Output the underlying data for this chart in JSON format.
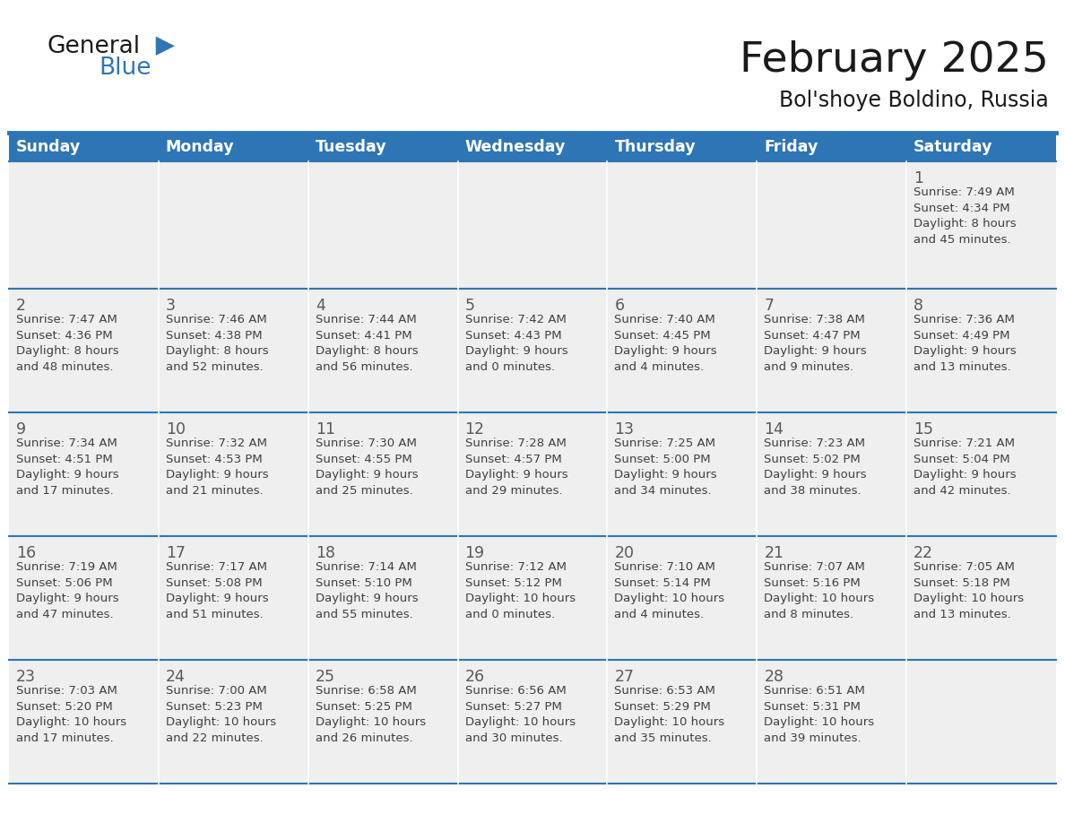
{
  "title": "February 2025",
  "subtitle": "Bol'shoye Boldino, Russia",
  "header_bg": "#2E75B6",
  "header_text_color": "#FFFFFF",
  "cell_bg": "#EFEFEF",
  "day_names": [
    "Sunday",
    "Monday",
    "Tuesday",
    "Wednesday",
    "Thursday",
    "Friday",
    "Saturday"
  ],
  "title_color": "#1a1a1a",
  "subtitle_color": "#1a1a1a",
  "line_color": "#2E75B6",
  "day_number_color": "#595959",
  "info_color": "#404040",
  "logo_general_color": "#1a1a1a",
  "logo_blue_color": "#2E75B6",
  "days": [
    {
      "day": 1,
      "col": 6,
      "row": 0,
      "sunrise": "7:49 AM",
      "sunset": "4:34 PM",
      "daylight": "8 hours and 45 minutes."
    },
    {
      "day": 2,
      "col": 0,
      "row": 1,
      "sunrise": "7:47 AM",
      "sunset": "4:36 PM",
      "daylight": "8 hours and 48 minutes."
    },
    {
      "day": 3,
      "col": 1,
      "row": 1,
      "sunrise": "7:46 AM",
      "sunset": "4:38 PM",
      "daylight": "8 hours and 52 minutes."
    },
    {
      "day": 4,
      "col": 2,
      "row": 1,
      "sunrise": "7:44 AM",
      "sunset": "4:41 PM",
      "daylight": "8 hours and 56 minutes."
    },
    {
      "day": 5,
      "col": 3,
      "row": 1,
      "sunrise": "7:42 AM",
      "sunset": "4:43 PM",
      "daylight": "9 hours and 0 minutes."
    },
    {
      "day": 6,
      "col": 4,
      "row": 1,
      "sunrise": "7:40 AM",
      "sunset": "4:45 PM",
      "daylight": "9 hours and 4 minutes."
    },
    {
      "day": 7,
      "col": 5,
      "row": 1,
      "sunrise": "7:38 AM",
      "sunset": "4:47 PM",
      "daylight": "9 hours and 9 minutes."
    },
    {
      "day": 8,
      "col": 6,
      "row": 1,
      "sunrise": "7:36 AM",
      "sunset": "4:49 PM",
      "daylight": "9 hours and 13 minutes."
    },
    {
      "day": 9,
      "col": 0,
      "row": 2,
      "sunrise": "7:34 AM",
      "sunset": "4:51 PM",
      "daylight": "9 hours and 17 minutes."
    },
    {
      "day": 10,
      "col": 1,
      "row": 2,
      "sunrise": "7:32 AM",
      "sunset": "4:53 PM",
      "daylight": "9 hours and 21 minutes."
    },
    {
      "day": 11,
      "col": 2,
      "row": 2,
      "sunrise": "7:30 AM",
      "sunset": "4:55 PM",
      "daylight": "9 hours and 25 minutes."
    },
    {
      "day": 12,
      "col": 3,
      "row": 2,
      "sunrise": "7:28 AM",
      "sunset": "4:57 PM",
      "daylight": "9 hours and 29 minutes."
    },
    {
      "day": 13,
      "col": 4,
      "row": 2,
      "sunrise": "7:25 AM",
      "sunset": "5:00 PM",
      "daylight": "9 hours and 34 minutes."
    },
    {
      "day": 14,
      "col": 5,
      "row": 2,
      "sunrise": "7:23 AM",
      "sunset": "5:02 PM",
      "daylight": "9 hours and 38 minutes."
    },
    {
      "day": 15,
      "col": 6,
      "row": 2,
      "sunrise": "7:21 AM",
      "sunset": "5:04 PM",
      "daylight": "9 hours and 42 minutes."
    },
    {
      "day": 16,
      "col": 0,
      "row": 3,
      "sunrise": "7:19 AM",
      "sunset": "5:06 PM",
      "daylight": "9 hours and 47 minutes."
    },
    {
      "day": 17,
      "col": 1,
      "row": 3,
      "sunrise": "7:17 AM",
      "sunset": "5:08 PM",
      "daylight": "9 hours and 51 minutes."
    },
    {
      "day": 18,
      "col": 2,
      "row": 3,
      "sunrise": "7:14 AM",
      "sunset": "5:10 PM",
      "daylight": "9 hours and 55 minutes."
    },
    {
      "day": 19,
      "col": 3,
      "row": 3,
      "sunrise": "7:12 AM",
      "sunset": "5:12 PM",
      "daylight": "10 hours and 0 minutes."
    },
    {
      "day": 20,
      "col": 4,
      "row": 3,
      "sunrise": "7:10 AM",
      "sunset": "5:14 PM",
      "daylight": "10 hours and 4 minutes."
    },
    {
      "day": 21,
      "col": 5,
      "row": 3,
      "sunrise": "7:07 AM",
      "sunset": "5:16 PM",
      "daylight": "10 hours and 8 minutes."
    },
    {
      "day": 22,
      "col": 6,
      "row": 3,
      "sunrise": "7:05 AM",
      "sunset": "5:18 PM",
      "daylight": "10 hours and 13 minutes."
    },
    {
      "day": 23,
      "col": 0,
      "row": 4,
      "sunrise": "7:03 AM",
      "sunset": "5:20 PM",
      "daylight": "10 hours and 17 minutes."
    },
    {
      "day": 24,
      "col": 1,
      "row": 4,
      "sunrise": "7:00 AM",
      "sunset": "5:23 PM",
      "daylight": "10 hours and 22 minutes."
    },
    {
      "day": 25,
      "col": 2,
      "row": 4,
      "sunrise": "6:58 AM",
      "sunset": "5:25 PM",
      "daylight": "10 hours and 26 minutes."
    },
    {
      "day": 26,
      "col": 3,
      "row": 4,
      "sunrise": "6:56 AM",
      "sunset": "5:27 PM",
      "daylight": "10 hours and 30 minutes."
    },
    {
      "day": 27,
      "col": 4,
      "row": 4,
      "sunrise": "6:53 AM",
      "sunset": "5:29 PM",
      "daylight": "10 hours and 35 minutes."
    },
    {
      "day": 28,
      "col": 5,
      "row": 4,
      "sunrise": "6:51 AM",
      "sunset": "5:31 PM",
      "daylight": "10 hours and 39 minutes."
    }
  ]
}
